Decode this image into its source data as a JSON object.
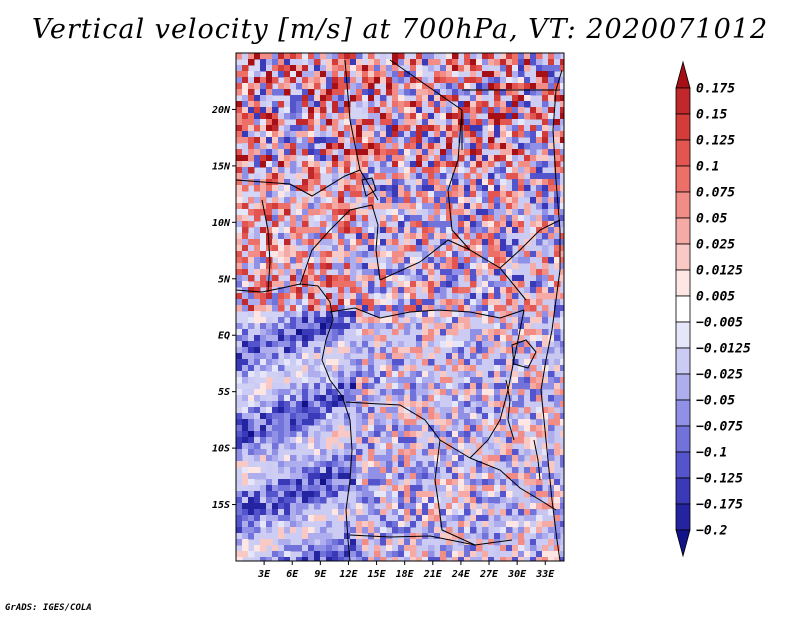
{
  "title": "Vertical velocity [m/s] at 700hPa, VT: 2020071012",
  "credit": "GrADS: IGES/COLA",
  "map": {
    "variable": "Vertical velocity",
    "units": "m/s",
    "level": "700hPa",
    "valid_time": "2020071012",
    "lon_range": [
      0,
      35
    ],
    "lat_range": [
      -20,
      25
    ],
    "x_ticks": [
      "3E",
      "6E",
      "9E",
      "12E",
      "15E",
      "18E",
      "21E",
      "24E",
      "27E",
      "30E",
      "33E"
    ],
    "x_tick_values": [
      3,
      6,
      9,
      12,
      15,
      18,
      21,
      24,
      27,
      30,
      33
    ],
    "y_ticks": [
      "20N",
      "15N",
      "10N",
      "5N",
      "EQ",
      "5S",
      "10S",
      "15S"
    ],
    "y_tick_values": [
      20,
      15,
      10,
      5,
      0,
      -5,
      -10,
      -15
    ]
  },
  "colorbar": {
    "labels": [
      "0.175",
      "0.15",
      "0.125",
      "0.1",
      "0.075",
      "0.05",
      "0.025",
      "0.0125",
      "0.005",
      "−0.005",
      "−0.0125",
      "−0.025",
      "−0.05",
      "−0.075",
      "−0.1",
      "−0.125",
      "−0.175",
      "−0.2"
    ],
    "colors": [
      "#a50f15",
      "#c0282b",
      "#d43c3a",
      "#e35550",
      "#ec7068",
      "#f28c86",
      "#f6aaa6",
      "#f9c9c6",
      "#fde6e4",
      "#ffffff",
      "#e6e6fb",
      "#cbcbf5",
      "#aeaeee",
      "#9090e6",
      "#7272db",
      "#5454cc",
      "#3a3ab8",
      "#2424a0",
      "#12128a"
    ]
  }
}
